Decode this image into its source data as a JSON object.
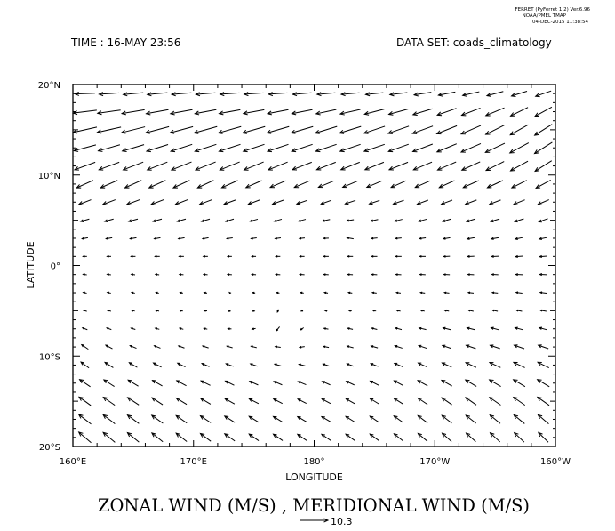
{
  "header": {
    "software": "FERRET (PyFerret 1.2) Ver.6.96",
    "organization": "NOAA/PMEL TMAP",
    "timestamp": "04-DEC-2015 11:38:54",
    "time_label": "TIME : 16-MAY 23:56",
    "dataset_label": "DATA SET: coads_climatology"
  },
  "chart_data": {
    "type": "vector",
    "title": "ZONAL WIND (M/S) , MERIDIONAL WIND (M/S)",
    "xlabel": "LONGITUDE",
    "ylabel": "LATITUDE",
    "x_ticks": [
      "160°E",
      "170°E",
      "180°",
      "170°W",
      "160°W"
    ],
    "y_ticks": [
      "20°N",
      "10°N",
      "0°",
      "10°S",
      "20°S"
    ],
    "xlim": [
      160,
      200
    ],
    "ylim": [
      -20,
      20
    ],
    "grid": false,
    "reference_vector": {
      "value": 10.3,
      "label": "10.3",
      "units": "m/s"
    },
    "lons": [
      161,
      163,
      165,
      167,
      169,
      171,
      173,
      175,
      177,
      179,
      181,
      183,
      185,
      187,
      189,
      191,
      193,
      195,
      197,
      199
    ],
    "lats": [
      19,
      17,
      15,
      13,
      11,
      9,
      7,
      5,
      3,
      1,
      -1,
      -3,
      -5,
      -7,
      -9,
      -11,
      -13,
      -15,
      -17,
      -19
    ],
    "u": [
      [
        -7.5,
        -7.5,
        -7.5,
        -7.5,
        -7.4,
        -7.3,
        -7.2,
        -7.2,
        -7.0,
        -7.0,
        -6.8,
        -6.8,
        -6.6,
        -6.5,
        -6.4,
        -6.3,
        -6.2,
        -6.1,
        -5.8,
        -5.8
      ],
      [
        -8.8,
        -8.6,
        -8.5,
        -8.3,
        -8.2,
        -8.0,
        -7.9,
        -7.8,
        -7.8,
        -7.7,
        -7.5,
        -7.5,
        -7.4,
        -7.3,
        -7.2,
        -7.1,
        -7.0,
        -6.9,
        -6.5,
        -6.3
      ],
      [
        -8.9,
        -8.9,
        -8.8,
        -8.7,
        -8.6,
        -8.6,
        -8.5,
        -8.4,
        -8.3,
        -8.2,
        -8.1,
        -8.0,
        -7.8,
        -7.7,
        -7.6,
        -7.5,
        -7.3,
        -7.0,
        -6.7,
        -6.5
      ],
      [
        -8.2,
        -8.1,
        -8.1,
        -8.0,
        -8.0,
        -8.0,
        -8.0,
        -7.9,
        -7.8,
        -7.8,
        -7.7,
        -7.6,
        -7.6,
        -7.5,
        -7.4,
        -7.3,
        -7.3,
        -7.2,
        -7.0,
        -6.6
      ],
      [
        -7.7,
        -7.6,
        -7.5,
        -7.5,
        -7.5,
        -7.5,
        -7.4,
        -7.3,
        -7.2,
        -7.2,
        -7.1,
        -7.0,
        -7.0,
        -7.0,
        -6.9,
        -6.9,
        -6.8,
        -6.7,
        -6.5,
        -6.2
      ],
      [
        -6.2,
        -6.3,
        -6.2,
        -6.2,
        -6.1,
        -6.0,
        -6.0,
        -5.9,
        -5.8,
        -5.8,
        -5.8,
        -5.7,
        -5.7,
        -5.6,
        -5.6,
        -5.7,
        -5.8,
        -5.8,
        -5.6,
        -5.5
      ],
      [
        -4.6,
        -4.7,
        -4.8,
        -4.7,
        -4.6,
        -4.5,
        -4.3,
        -4.2,
        -4.1,
        -4.0,
        -3.9,
        -3.9,
        -3.9,
        -4.0,
        -4.1,
        -4.1,
        -4.2,
        -4.2,
        -4.2,
        -4.2
      ],
      [
        -3.2,
        -3.3,
        -3.4,
        -3.3,
        -3.2,
        -3.1,
        -3.0,
        -2.9,
        -2.8,
        -2.7,
        -2.8,
        -2.6,
        -2.7,
        -2.8,
        -3.0,
        -3.1,
        -3.3,
        -3.3,
        -3.4,
        -3.4
      ],
      [
        -2.2,
        -2.3,
        -2.4,
        -2.3,
        -2.3,
        -2.2,
        -2.2,
        -2.1,
        -2.1,
        -2.0,
        -1.9,
        -2.4,
        -2.2,
        -2.2,
        -2.3,
        -2.5,
        -2.7,
        -2.8,
        -2.9,
        -3.0
      ],
      [
        -1.5,
        -1.5,
        -1.7,
        -1.8,
        -1.8,
        -1.7,
        -1.6,
        -1.6,
        -1.7,
        -1.8,
        -1.9,
        -2.0,
        -2.1,
        -2.2,
        -2.2,
        -2.3,
        -2.5,
        -2.6,
        -2.7,
        -2.8
      ],
      [
        -1.4,
        -1.4,
        -1.4,
        -1.4,
        -1.5,
        -1.5,
        -1.6,
        -1.6,
        -1.7,
        -1.8,
        -1.8,
        -1.9,
        -2.0,
        -2.0,
        -2.1,
        -2.2,
        -2.3,
        -2.4,
        -2.6,
        -2.7
      ],
      [
        -1.3,
        -1.3,
        -1.2,
        -1.1,
        -1.1,
        -1.1,
        -0.3,
        -1.0,
        -1.1,
        -1.2,
        -1.3,
        -1.4,
        -1.6,
        -1.6,
        -1.7,
        -1.8,
        -2.0,
        -2.1,
        -2.3,
        -2.4
      ],
      [
        -1.4,
        -1.4,
        -1.2,
        -1.3,
        -1.1,
        -1.1,
        -0.9,
        -0.9,
        -0.4,
        -0.7,
        -0.8,
        -1.0,
        -1.2,
        -1.4,
        -1.4,
        -1.6,
        -1.9,
        -2.0,
        -2.1,
        -2.3
      ],
      [
        -1.8,
        -1.7,
        -1.6,
        -1.5,
        -1.4,
        -1.3,
        -1.3,
        -1.3,
        -1.2,
        -1.2,
        -1.6,
        -1.9,
        -2.0,
        -2.3,
        -2.6,
        -2.8,
        -2.9,
        -3.0,
        -3.1,
        -3.0
      ],
      [
        -2.5,
        -2.5,
        -2.4,
        -2.3,
        -2.2,
        -2.2,
        -2.1,
        -2.1,
        -2.0,
        -1.9,
        -2.0,
        -2.3,
        -2.5,
        -2.8,
        -3.0,
        -3.3,
        -3.6,
        -3.7,
        -3.8,
        -3.8
      ],
      [
        -3.0,
        -3.1,
        -3.0,
        -3.0,
        -2.9,
        -2.8,
        -2.8,
        -2.6,
        -2.5,
        -2.4,
        -2.4,
        -2.5,
        -2.8,
        -3.1,
        -3.4,
        -3.6,
        -3.9,
        -4.1,
        -4.2,
        -4.2
      ],
      [
        -4.0,
        -3.9,
        -3.8,
        -3.7,
        -3.6,
        -3.5,
        -3.3,
        -3.2,
        -3.1,
        -3.0,
        -3.0,
        -3.0,
        -3.2,
        -3.4,
        -3.7,
        -3.9,
        -4.1,
        -4.3,
        -4.4,
        -4.5
      ],
      [
        -4.4,
        -4.3,
        -4.2,
        -4.0,
        -3.9,
        -3.7,
        -3.6,
        -3.5,
        -3.3,
        -3.2,
        -3.2,
        -3.2,
        -3.3,
        -3.5,
        -3.6,
        -3.8,
        -4.0,
        -4.2,
        -4.3,
        -4.4
      ],
      [
        -4.6,
        -4.4,
        -4.3,
        -4.2,
        -4.0,
        -3.9,
        -3.8,
        -3.6,
        -3.5,
        -3.4,
        -3.4,
        -3.4,
        -3.4,
        -3.5,
        -3.6,
        -3.7,
        -3.8,
        -3.9,
        -4.0,
        -4.0
      ],
      [
        -4.6,
        -4.4,
        -4.3,
        -4.1,
        -4.0,
        -3.9,
        -3.8,
        -3.6,
        -3.5,
        -3.4,
        -3.4,
        -3.4,
        -3.4,
        -3.4,
        -3.5,
        -3.5,
        -3.6,
        -3.7,
        -3.7,
        -3.7
      ]
    ],
    "v": [
      [
        -0.3,
        -0.5,
        -0.7,
        -0.7,
        -0.6,
        -0.6,
        -0.5,
        -0.5,
        -0.5,
        -0.6,
        -0.6,
        -0.6,
        -0.7,
        -0.8,
        -1.0,
        -1.2,
        -1.4,
        -1.6,
        -1.8,
        -2.0
      ],
      [
        -1.1,
        -1.2,
        -1.4,
        -1.5,
        -1.5,
        -1.5,
        -1.4,
        -1.4,
        -1.5,
        -1.5,
        -1.6,
        -1.7,
        -1.9,
        -2.0,
        -2.2,
        -2.5,
        -2.7,
        -2.9,
        -3.2,
        -3.5
      ],
      [
        -2.0,
        -2.0,
        -2.2,
        -2.3,
        -2.3,
        -2.4,
        -2.4,
        -2.4,
        -2.4,
        -2.4,
        -2.5,
        -2.5,
        -2.6,
        -2.7,
        -2.8,
        -3.0,
        -3.2,
        -3.5,
        -3.8,
        -4.1
      ],
      [
        -2.2,
        -2.3,
        -2.4,
        -2.5,
        -2.6,
        -2.6,
        -2.6,
        -2.6,
        -2.6,
        -2.6,
        -2.6,
        -2.6,
        -2.6,
        -2.7,
        -2.8,
        -3.0,
        -3.2,
        -3.4,
        -3.8,
        -4.2
      ],
      [
        -2.8,
        -2.8,
        -2.9,
        -2.9,
        -3.0,
        -3.0,
        -3.0,
        -3.0,
        -2.9,
        -2.8,
        -2.8,
        -2.8,
        -2.8,
        -2.8,
        -2.9,
        -3.0,
        -3.1,
        -3.3,
        -3.6,
        -3.9
      ],
      [
        -2.8,
        -2.8,
        -2.8,
        -2.8,
        -2.8,
        -2.8,
        -2.7,
        -2.6,
        -2.5,
        -2.5,
        -2.4,
        -2.4,
        -2.4,
        -2.5,
        -2.5,
        -2.6,
        -2.6,
        -2.7,
        -2.8,
        -3.0
      ],
      [
        -1.8,
        -1.8,
        -1.8,
        -1.8,
        -1.8,
        -1.7,
        -1.6,
        -1.6,
        -1.5,
        -1.4,
        -1.4,
        -1.3,
        -1.3,
        -1.4,
        -1.5,
        -1.5,
        -1.6,
        -1.6,
        -1.7,
        -1.8
      ],
      [
        -0.9,
        -0.9,
        -0.9,
        -0.9,
        -0.9,
        -0.9,
        -0.9,
        -0.8,
        -0.8,
        -0.7,
        -0.6,
        -0.4,
        -0.6,
        -0.7,
        -0.8,
        -0.9,
        -1.0,
        -1.0,
        -1.1,
        -1.2
      ],
      [
        -0.4,
        -0.4,
        -0.4,
        -0.4,
        -0.4,
        -0.4,
        -0.3,
        -0.3,
        -0.3,
        -0.2,
        -0.1,
        0.4,
        -0.2,
        -0.2,
        -0.3,
        -0.4,
        -0.5,
        -0.5,
        -0.6,
        -0.6
      ],
      [
        0.0,
        0.0,
        0.0,
        0.0,
        0.0,
        0.0,
        0.0,
        0.0,
        0.0,
        0.0,
        0.0,
        0.0,
        0.0,
        0.0,
        0.0,
        -0.1,
        -0.1,
        -0.1,
        -0.2,
        -0.2
      ],
      [
        0.2,
        0.2,
        0.2,
        0.2,
        0.1,
        0.1,
        0.1,
        0.1,
        0.1,
        0.1,
        0.1,
        0.1,
        0.1,
        0.1,
        0.1,
        0.1,
        0.1,
        0.1,
        0.1,
        0.1
      ],
      [
        0.3,
        0.3,
        0.3,
        0.3,
        0.2,
        0.2,
        0.3,
        0.2,
        0.2,
        0.2,
        0.2,
        0.2,
        0.2,
        0.2,
        0.2,
        0.2,
        0.2,
        0.2,
        0.3,
        0.3
      ],
      [
        0.5,
        0.4,
        0.3,
        0.3,
        0.3,
        0.2,
        -0.5,
        -0.4,
        -1.0,
        -0.3,
        0.1,
        0.2,
        0.3,
        0.3,
        0.3,
        0.3,
        0.4,
        0.4,
        0.4,
        0.4
      ],
      [
        0.7,
        0.6,
        0.5,
        0.4,
        0.4,
        0.3,
        0.1,
        -0.2,
        -1.5,
        -0.8,
        0.3,
        0.4,
        0.5,
        0.6,
        0.6,
        0.7,
        0.7,
        0.8,
        0.8,
        0.8
      ],
      [
        1.7,
        1.3,
        1.0,
        0.9,
        0.8,
        0.7,
        0.6,
        0.5,
        0.3,
        -0.3,
        0.4,
        0.6,
        0.7,
        0.9,
        1.0,
        1.1,
        1.2,
        1.2,
        1.3,
        1.3
      ],
      [
        2.2,
        2.0,
        1.8,
        1.6,
        1.4,
        1.2,
        1.0,
        0.9,
        0.7,
        0.6,
        0.8,
        0.9,
        1.1,
        1.3,
        1.5,
        1.6,
        1.8,
        1.9,
        2.0,
        2.1
      ],
      [
        2.7,
        2.5,
        2.3,
        2.1,
        1.9,
        1.7,
        1.6,
        1.4,
        1.3,
        1.2,
        1.3,
        1.4,
        1.6,
        1.8,
        2.0,
        2.2,
        2.4,
        2.5,
        2.6,
        2.7
      ],
      [
        3.2,
        3.0,
        2.8,
        2.6,
        2.4,
        2.2,
        2.0,
        1.8,
        1.7,
        1.6,
        1.7,
        1.8,
        2.0,
        2.2,
        2.4,
        2.6,
        2.8,
        2.9,
        3.0,
        3.1
      ],
      [
        3.6,
        3.4,
        3.2,
        3.0,
        2.8,
        2.6,
        2.4,
        2.2,
        2.1,
        2.0,
        2.0,
        2.1,
        2.3,
        2.5,
        2.7,
        2.9,
        3.0,
        3.2,
        3.3,
        3.4
      ],
      [
        3.9,
        3.7,
        3.5,
        3.3,
        3.1,
        2.9,
        2.7,
        2.5,
        2.4,
        2.3,
        2.3,
        2.4,
        2.5,
        2.7,
        2.9,
        3.1,
        3.2,
        3.4,
        3.5,
        3.6
      ]
    ]
  }
}
